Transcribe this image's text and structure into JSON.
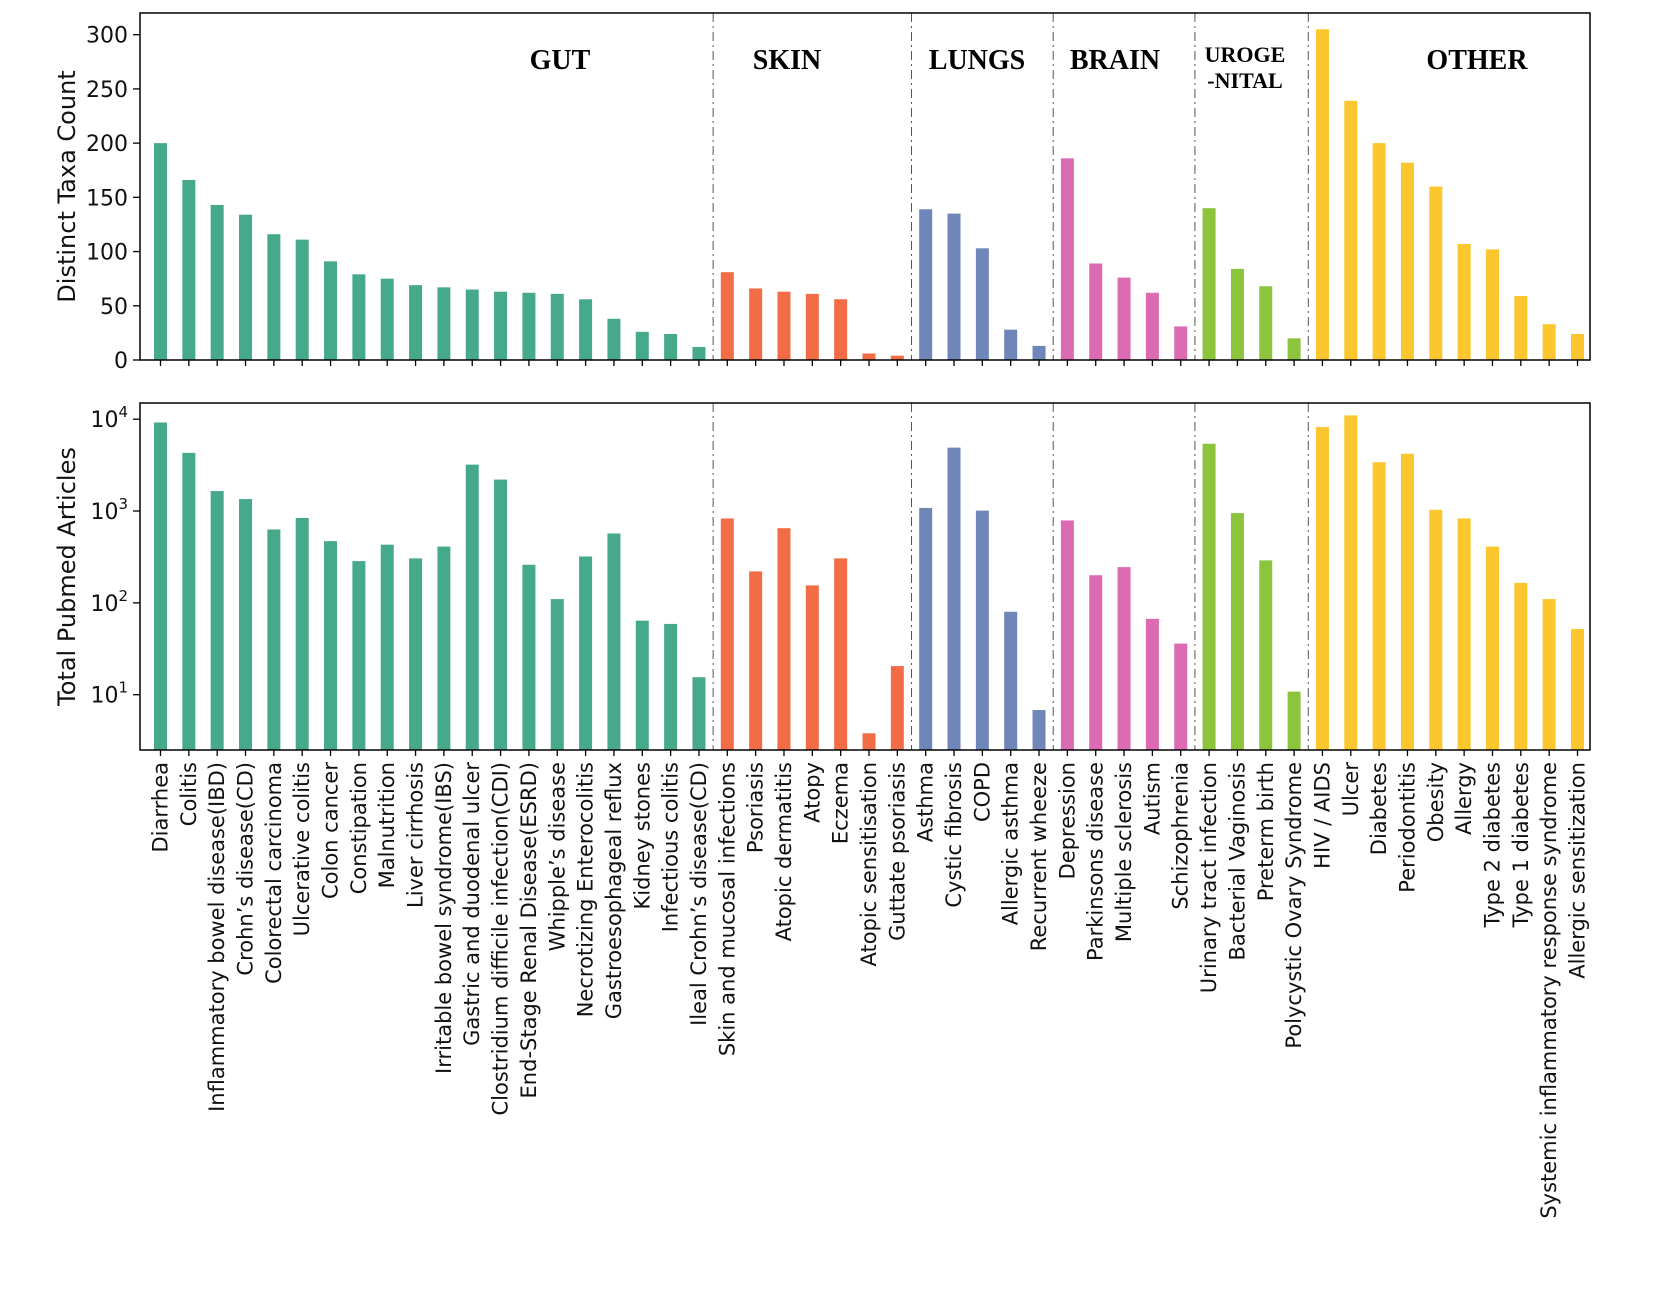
{
  "chart_data": {
    "type": "bar",
    "groups": [
      {
        "key": "gut",
        "label": "GUT",
        "color": "#46a98c"
      },
      {
        "key": "skin",
        "label": "SKIN",
        "color": "#f26d45"
      },
      {
        "key": "lungs",
        "label": "LUNGS",
        "color": "#6f86b8"
      },
      {
        "key": "brain",
        "label": "BRAIN",
        "color": "#dc6bb4"
      },
      {
        "key": "urogenital",
        "label": "UROGE",
        "label2": "-NITAL",
        "color": "#8cc43c"
      },
      {
        "key": "other",
        "label": "OTHER",
        "color": "#fcc62e"
      }
    ],
    "categories": [
      {
        "name": "Diarrhea",
        "group": "gut"
      },
      {
        "name": "Colitis",
        "group": "gut"
      },
      {
        "name": "Inflammatory bowel disease(IBD)",
        "group": "gut"
      },
      {
        "name": "Crohn’s disease(CD)",
        "group": "gut"
      },
      {
        "name": "Colorectal carcinoma",
        "group": "gut"
      },
      {
        "name": "Ulcerative colitis",
        "group": "gut"
      },
      {
        "name": "Colon cancer",
        "group": "gut"
      },
      {
        "name": "Constipation",
        "group": "gut"
      },
      {
        "name": "Malnutrition",
        "group": "gut"
      },
      {
        "name": "Liver cirrhosis",
        "group": "gut"
      },
      {
        "name": "Irritable bowel syndrome(IBS)",
        "group": "gut"
      },
      {
        "name": "Gastric and duodenal ulcer",
        "group": "gut"
      },
      {
        "name": "Clostridium difficile infection(CDI)",
        "group": "gut"
      },
      {
        "name": "End-Stage Renal Disease(ESRD)",
        "group": "gut"
      },
      {
        "name": "Whipple’s disease",
        "group": "gut"
      },
      {
        "name": "Necrotizing Enterocolitis",
        "group": "gut"
      },
      {
        "name": "Gastroesophageal reflux",
        "group": "gut"
      },
      {
        "name": "Kidney stones",
        "group": "gut"
      },
      {
        "name": "Infectious colitis",
        "group": "gut"
      },
      {
        "name": "Ileal Crohn’s disease(CD)",
        "group": "gut"
      },
      {
        "name": "Skin and mucosal infections",
        "group": "skin"
      },
      {
        "name": "Psoriasis",
        "group": "skin"
      },
      {
        "name": "Atopic dermatitis",
        "group": "skin"
      },
      {
        "name": "Atopy",
        "group": "skin"
      },
      {
        "name": "Eczema",
        "group": "skin"
      },
      {
        "name": "Atopic sensitisation",
        "group": "skin"
      },
      {
        "name": "Guttate psoriasis",
        "group": "skin"
      },
      {
        "name": "Asthma",
        "group": "lungs"
      },
      {
        "name": "Cystic fibrosis",
        "group": "lungs"
      },
      {
        "name": "COPD",
        "group": "lungs"
      },
      {
        "name": "Allergic asthma",
        "group": "lungs"
      },
      {
        "name": "Recurrent wheeze",
        "group": "lungs"
      },
      {
        "name": "Depression",
        "group": "brain"
      },
      {
        "name": "Parkinsons disease",
        "group": "brain"
      },
      {
        "name": "Multiple sclerosis",
        "group": "brain"
      },
      {
        "name": "Autism",
        "group": "brain"
      },
      {
        "name": "Schizophrenia",
        "group": "brain"
      },
      {
        "name": "Urinary tract infection",
        "group": "urogenital"
      },
      {
        "name": "Bacterial Vaginosis",
        "group": "urogenital"
      },
      {
        "name": "Preterm birth",
        "group": "urogenital"
      },
      {
        "name": "Polycystic Ovary Syndrome",
        "group": "urogenital"
      },
      {
        "name": "HIV / AIDS",
        "group": "other"
      },
      {
        "name": "Ulcer",
        "group": "other"
      },
      {
        "name": "Diabetes",
        "group": "other"
      },
      {
        "name": "Periodontitis",
        "group": "other"
      },
      {
        "name": "Obesity",
        "group": "other"
      },
      {
        "name": "Allergy",
        "group": "other"
      },
      {
        "name": "Type 2 diabetes",
        "group": "other"
      },
      {
        "name": "Type 1 diabetes",
        "group": "other"
      },
      {
        "name": "Systemic inflammatory response syndrome",
        "group": "other"
      },
      {
        "name": "Allergic sensitization",
        "group": "other"
      }
    ],
    "panels": [
      {
        "key": "taxa",
        "ylabel": "Distinct Taxa Count",
        "scale": "linear",
        "ylim": [
          0,
          320
        ],
        "yticks": [
          0,
          50,
          100,
          150,
          200,
          250,
          300
        ],
        "values": [
          200,
          166,
          143,
          134,
          116,
          111,
          91,
          79,
          75,
          69,
          67,
          65,
          63,
          62,
          61,
          56,
          38,
          26,
          24,
          12,
          81,
          66,
          63,
          61,
          56,
          6,
          4,
          139,
          135,
          103,
          28,
          13,
          186,
          89,
          76,
          62,
          31,
          140,
          84,
          68,
          20,
          305,
          239,
          200,
          182,
          160,
          107,
          102,
          59,
          33,
          24
        ]
      },
      {
        "key": "pubmed",
        "ylabel": "Total Pubmed Articles",
        "scale": "log",
        "ylim": [
          2.5,
          15000
        ],
        "yticks": [
          {
            "value": 10,
            "base": "10",
            "exp": "1"
          },
          {
            "value": 100,
            "base": "10",
            "exp": "2"
          },
          {
            "value": 1000,
            "base": "10",
            "exp": "3"
          },
          {
            "value": 10000,
            "base": "10",
            "exp": "4"
          }
        ],
        "values": [
          9200,
          4300,
          1650,
          1350,
          630,
          840,
          470,
          285,
          430,
          305,
          410,
          3200,
          2200,
          260,
          110,
          320,
          570,
          64,
          59,
          15.5,
          830,
          220,
          650,
          155,
          305,
          3.8,
          20.5,
          1080,
          4900,
          1010,
          80,
          6.8,
          790,
          200,
          245,
          67,
          36,
          5400,
          950,
          290,
          10.8,
          8200,
          11000,
          3400,
          4200,
          1030,
          830,
          410,
          165,
          110,
          52
        ]
      }
    ]
  }
}
